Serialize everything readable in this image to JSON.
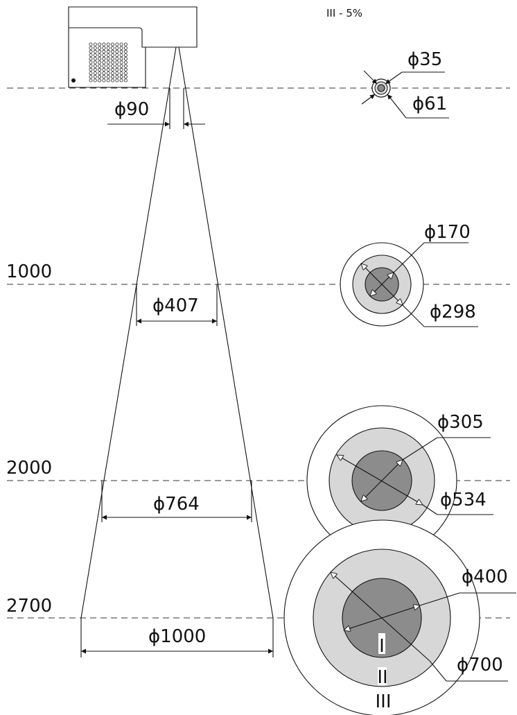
{
  "legend_note": "III - 5%",
  "diam_prefix": "ϕ",
  "levels": [
    {
      "distance": "",
      "beam_diameter": "90",
      "inner_diameter": "35",
      "outer_diameter": "61"
    },
    {
      "distance": "1000",
      "beam_diameter": "407",
      "inner_diameter": "170",
      "outer_diameter": "298"
    },
    {
      "distance": "2000",
      "beam_diameter": "764",
      "inner_diameter": "305",
      "outer_diameter": "534"
    },
    {
      "distance": "2700",
      "beam_diameter": "1000",
      "inner_diameter": "400",
      "outer_diameter": "700"
    }
  ],
  "zone_labels": [
    "I",
    "II",
    "III"
  ],
  "colors": {
    "zone_I": "#8c8c8c",
    "zone_II": "#d7d7d7",
    "zone_III": "#ffffff",
    "lines": "#111111"
  }
}
